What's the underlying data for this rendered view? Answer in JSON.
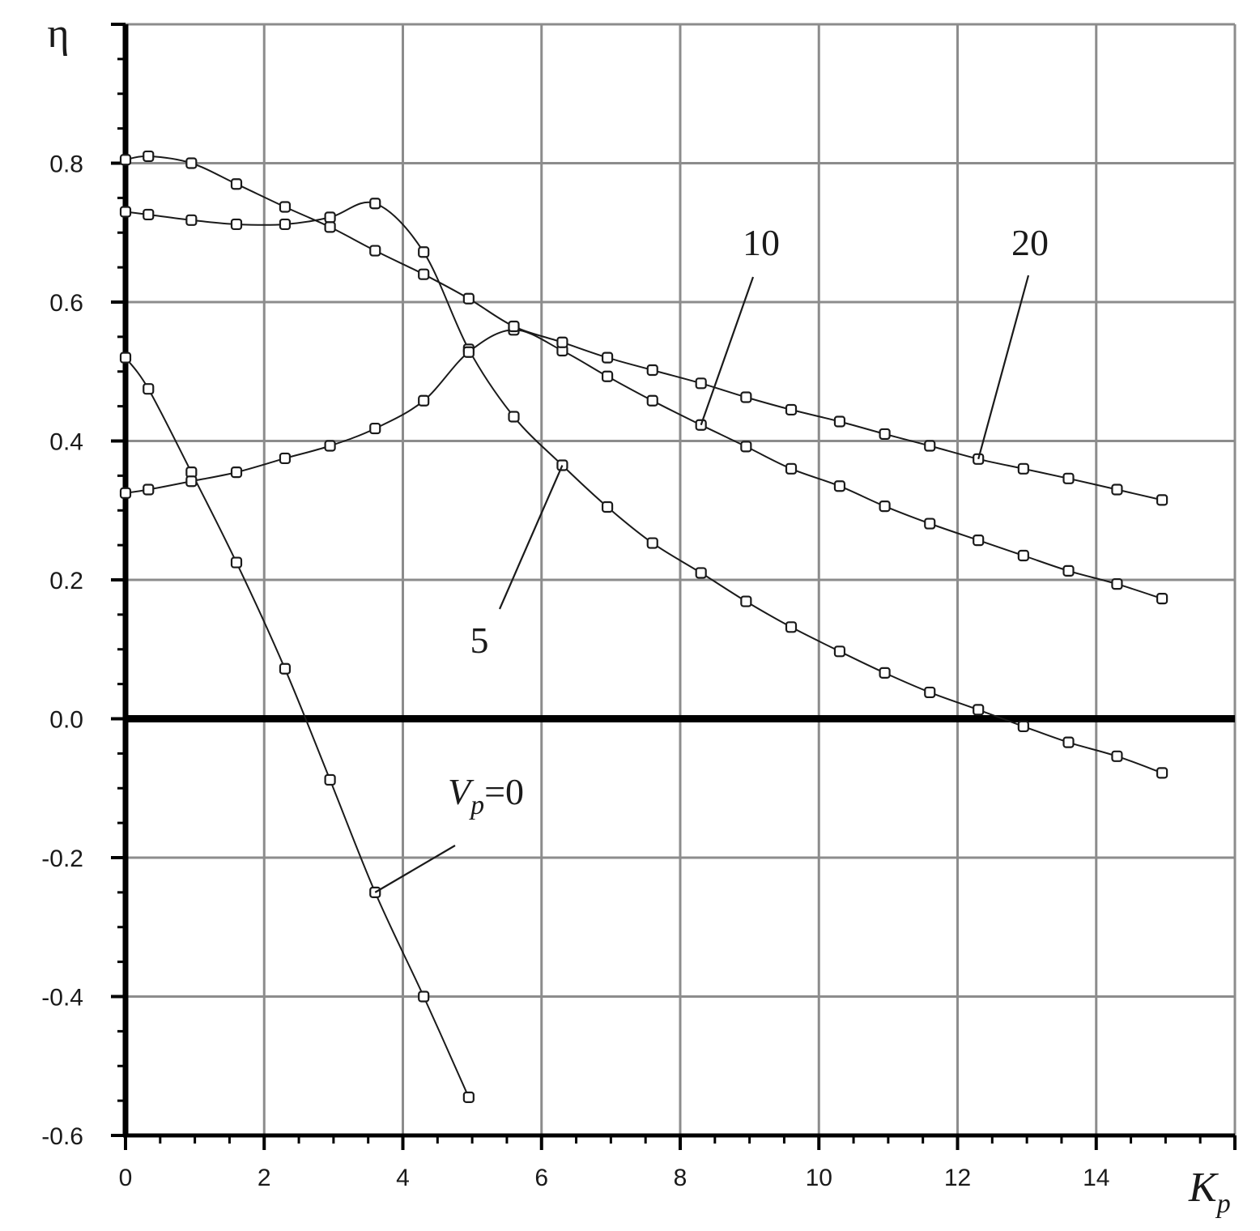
{
  "chart_data": {
    "type": "line",
    "xlabel": "K",
    "xlabel_sub": "p",
    "ylabel": "η",
    "xlim": [
      0,
      16
    ],
    "ylim": [
      -0.6,
      1.0
    ],
    "x_ticks": [
      0,
      2,
      4,
      6,
      8,
      10,
      12,
      14
    ],
    "x_tick_labels": [
      "0",
      "2",
      "4",
      "6",
      "8",
      "10",
      "12",
      "14"
    ],
    "y_ticks": [
      -0.6,
      -0.4,
      -0.2,
      0.0,
      0.2,
      0.4,
      0.6,
      0.8
    ],
    "y_tick_labels": [
      "-0.6",
      "-0.4",
      "-0.2",
      "0.0",
      "0.2",
      "0.4",
      "0.6",
      "0.8"
    ],
    "grid": true,
    "legend": "none (curves labelled directly)",
    "series": [
      {
        "name": "Vp=0",
        "label": {
          "main": "V",
          "sub": "p",
          "rest": "=0"
        },
        "x": [
          0,
          0.33,
          0.95,
          1.6,
          2.3,
          2.95,
          3.6,
          4.3,
          4.95
        ],
        "y": [
          0.52,
          0.475,
          0.355,
          0.225,
          0.072,
          -0.088,
          -0.25,
          -0.4,
          -0.545
        ]
      },
      {
        "name": "5",
        "label": {
          "main": "5",
          "sub": "",
          "rest": ""
        },
        "x": [
          0,
          0.33,
          0.95,
          1.6,
          2.3,
          2.95,
          3.6,
          4.3,
          4.95,
          5.6,
          6.3,
          6.95,
          7.6,
          8.3,
          8.95,
          9.6,
          10.3,
          10.95,
          11.6,
          12.3,
          12.95,
          13.6,
          14.3,
          14.95
        ],
        "y": [
          0.73,
          0.726,
          0.718,
          0.712,
          0.712,
          0.722,
          0.742,
          0.672,
          0.532,
          0.435,
          0.365,
          0.305,
          0.253,
          0.21,
          0.169,
          0.132,
          0.097,
          0.066,
          0.038,
          0.013,
          -0.011,
          -0.034,
          -0.054,
          -0.078
        ]
      },
      {
        "name": "10",
        "label": {
          "main": "10",
          "sub": "",
          "rest": ""
        },
        "x": [
          0,
          0.33,
          0.95,
          1.6,
          2.3,
          2.95,
          3.6,
          4.3,
          4.95,
          5.6,
          6.3,
          6.95,
          7.6,
          8.3,
          8.95,
          9.6,
          10.3,
          10.95,
          11.6,
          12.3,
          12.95,
          13.6,
          14.3,
          14.95
        ],
        "y": [
          0.325,
          0.33,
          0.342,
          0.355,
          0.375,
          0.393,
          0.418,
          0.458,
          0.528,
          0.56,
          0.53,
          0.493,
          0.458,
          0.423,
          0.392,
          0.36,
          0.335,
          0.306,
          0.281,
          0.257,
          0.235,
          0.213,
          0.194,
          0.173
        ]
      },
      {
        "name": "20",
        "label": {
          "main": "20",
          "sub": "",
          "rest": ""
        },
        "x": [
          0,
          0.33,
          0.95,
          1.6,
          2.3,
          2.95,
          3.6,
          4.3,
          4.95,
          5.6,
          6.3,
          6.95,
          7.6,
          8.3,
          8.95,
          9.6,
          10.3,
          10.95,
          11.6,
          12.3,
          12.95,
          13.6,
          14.3,
          14.95
        ],
        "y": [
          0.805,
          0.81,
          0.8,
          0.77,
          0.737,
          0.708,
          0.674,
          0.64,
          0.605,
          0.565,
          0.542,
          0.52,
          0.502,
          0.483,
          0.463,
          0.445,
          0.428,
          0.41,
          0.393,
          0.374,
          0.36,
          0.346,
          0.33,
          0.315
        ]
      }
    ]
  }
}
